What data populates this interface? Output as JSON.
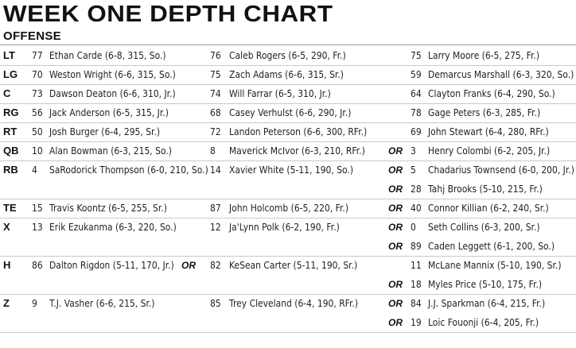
{
  "title": "WEEK ONE DEPTH CHART",
  "section": "OFFENSE",
  "or_label": "OR",
  "rows": [
    {
      "pos": "LT",
      "c1": {
        "num": "77",
        "name": "Ethan Carde (6-8, 315, So.)"
      },
      "or1": false,
      "c2": {
        "num": "76",
        "name": "Caleb Rogers (6-5, 290, Fr.)"
      },
      "or2": false,
      "c3": {
        "num": "75",
        "name": "Larry Moore (6-5, 275, Fr.)"
      }
    },
    {
      "pos": "LG",
      "c1": {
        "num": "70",
        "name": "Weston Wright (6-6, 315, So.)"
      },
      "or1": false,
      "c2": {
        "num": "75",
        "name": "Zach Adams (6-6, 315, Sr.)"
      },
      "or2": false,
      "c3": {
        "num": "59",
        "name": "Demarcus Marshall (6-3, 320, So.)"
      }
    },
    {
      "pos": "C",
      "c1": {
        "num": "73",
        "name": "Dawson Deaton (6-6, 310, Jr.)"
      },
      "or1": false,
      "c2": {
        "num": "74",
        "name": "Will Farrar (6-5, 310, Jr.)"
      },
      "or2": false,
      "c3": {
        "num": "64",
        "name": "Clayton Franks (6-4, 290, So.)"
      }
    },
    {
      "pos": "RG",
      "c1": {
        "num": "56",
        "name": "Jack Anderson (6-5, 315, Jr.)"
      },
      "or1": false,
      "c2": {
        "num": "68",
        "name": "Casey Verhulst (6-6, 290, Jr.)"
      },
      "or2": false,
      "c3": {
        "num": "78",
        "name": "Gage Peters (6-3, 285, Fr.)"
      }
    },
    {
      "pos": "RT",
      "c1": {
        "num": "50",
        "name": "Josh Burger (6-4, 295, Sr.)"
      },
      "or1": false,
      "c2": {
        "num": "72",
        "name": "Landon Peterson (6-6, 300, RFr.)"
      },
      "or2": false,
      "c3": {
        "num": "69",
        "name": "John Stewart (6-4, 280, RFr.)"
      }
    },
    {
      "pos": "QB",
      "c1": {
        "num": "10",
        "name": "Alan Bowman (6-3, 215, So.)"
      },
      "or1": false,
      "c2": {
        "num": "8",
        "name": "Maverick McIvor (6-3, 210, RFr.)"
      },
      "or2": true,
      "c3": {
        "num": "3",
        "name": "Henry Colombi (6-2, 205, Jr.)"
      }
    },
    {
      "pos": "RB",
      "c1": {
        "num": "4",
        "name": "SaRodorick Thompson (6-0, 210, So.)"
      },
      "or1": false,
      "c2": {
        "num": "14",
        "name": "Xavier White (5-11, 190, So.)"
      },
      "or2": true,
      "c3": {
        "num": "5",
        "name": "Chadarius Townsend (6-0, 200, Jr.)"
      }
    },
    {
      "pos": "",
      "c1": {
        "num": "",
        "name": ""
      },
      "or1": false,
      "c2": {
        "num": "",
        "name": ""
      },
      "or2": true,
      "c3": {
        "num": "28",
        "name": "Tahj Brooks (5-10, 215, Fr.)"
      }
    },
    {
      "pos": "TE",
      "c1": {
        "num": "15",
        "name": "Travis Koontz (6-5, 255, Sr.)"
      },
      "or1": false,
      "c2": {
        "num": "87",
        "name": "John Holcomb (6-5, 220, Fr.)"
      },
      "or2": true,
      "c3": {
        "num": "40",
        "name": "Connor Killian (6-2, 240, Sr.)"
      }
    },
    {
      "pos": "X",
      "c1": {
        "num": "13",
        "name": "Erik Ezukanma (6-3, 220, So.)"
      },
      "or1": false,
      "c2": {
        "num": "12",
        "name": "Ja'Lynn Polk (6-2, 190, Fr.)"
      },
      "or2": true,
      "c3": {
        "num": "0",
        "name": "Seth Collins (6-3, 200, Sr.)"
      }
    },
    {
      "pos": "",
      "c1": {
        "num": "",
        "name": ""
      },
      "or1": false,
      "c2": {
        "num": "",
        "name": ""
      },
      "or2": true,
      "c3": {
        "num": "89",
        "name": "Caden Leggett (6-1, 200, So.)"
      }
    },
    {
      "pos": "H",
      "c1": {
        "num": "86",
        "name": "Dalton Rigdon (5-11, 170, Jr.)"
      },
      "or1": true,
      "c2": {
        "num": "82",
        "name": "KeSean Carter (5-11, 190, Sr.)"
      },
      "or2": false,
      "c3": {
        "num": "11",
        "name": "McLane Mannix (5-10, 190, Sr.)"
      }
    },
    {
      "pos": "",
      "c1": {
        "num": "",
        "name": ""
      },
      "or1": false,
      "c2": {
        "num": "",
        "name": ""
      },
      "or2": true,
      "c3": {
        "num": "18",
        "name": "Myles Price (5-10, 175, Fr.)"
      }
    },
    {
      "pos": "Z",
      "c1": {
        "num": "9",
        "name": "T.J. Vasher (6-6, 215, Sr.)"
      },
      "or1": false,
      "c2": {
        "num": "85",
        "name": "Trey Cleveland (6-4, 190, RFr.)"
      },
      "or2": true,
      "c3": {
        "num": "84",
        "name": "J.J. Sparkman (6-4, 215, Fr.)"
      }
    },
    {
      "pos": "",
      "c1": {
        "num": "",
        "name": ""
      },
      "or1": false,
      "c2": {
        "num": "",
        "name": ""
      },
      "or2": true,
      "c3": {
        "num": "19",
        "name": "Loic Fouonji (6-4, 205, Fr.)"
      }
    }
  ]
}
